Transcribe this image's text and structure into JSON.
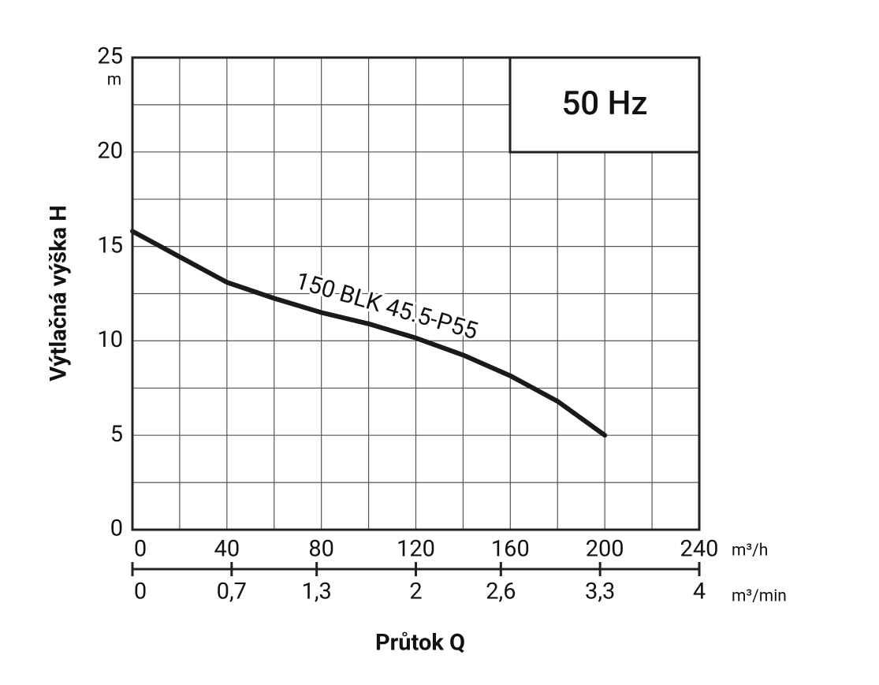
{
  "chart_data": {
    "type": "line",
    "annotation": "50 Hz",
    "xlabel": "Průtok Q",
    "ylabel": "Výtlačná výška H",
    "y_unit": "m",
    "x_unit": "m³/h",
    "x2_unit": "m³/min",
    "x": [
      0,
      20,
      40,
      60,
      80,
      100,
      120,
      140,
      160,
      180,
      200
    ],
    "series": [
      {
        "name": "150 BLK 45.5-P55",
        "color": "#1a1a1a",
        "values": [
          15.8,
          14.45,
          13.1,
          12.25,
          11.5,
          10.9,
          10.15,
          9.25,
          8.15,
          6.8,
          5.0
        ]
      }
    ],
    "xlim": [
      0,
      240
    ],
    "xticks": [
      0,
      40,
      80,
      120,
      160,
      200,
      240
    ],
    "x2lim": [
      0,
      4
    ],
    "x2ticks": [
      0,
      {
        "value": 0.7,
        "label": "0,7"
      },
      {
        "value": 1.3,
        "label": "1,3"
      },
      2,
      {
        "value": 2.6,
        "label": "2,6"
      },
      {
        "value": 3.3,
        "label": "3,3"
      },
      4
    ],
    "ylim": [
      0,
      25
    ],
    "yticks": [
      0,
      5,
      10,
      15,
      20,
      25
    ],
    "grid": true
  }
}
